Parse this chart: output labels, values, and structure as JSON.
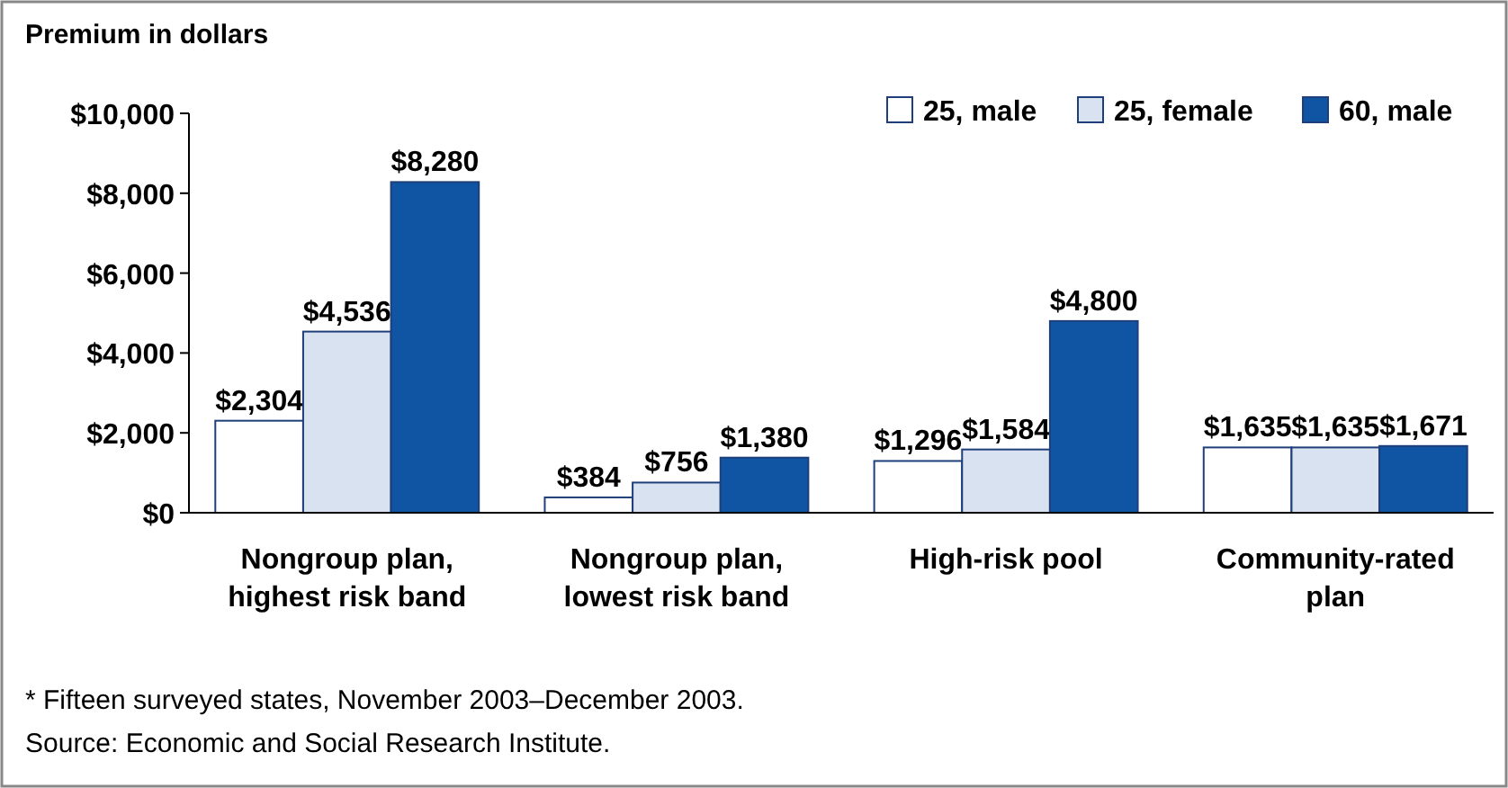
{
  "chart_data": {
    "type": "bar",
    "title": "Premium in dollars",
    "categories": [
      "Nongroup plan, highest risk band",
      "Nongroup plan, lowest risk band",
      "High-risk pool",
      "Community-rated plan"
    ],
    "series": [
      {
        "name": "25, male",
        "color": "#ffffff",
        "values": [
          2304,
          384,
          1296,
          1635
        ],
        "value_labels": [
          "$2,304",
          "$384",
          "$1,296",
          "$1,635"
        ]
      },
      {
        "name": "25, female",
        "color": "#d9e2f0",
        "values": [
          4536,
          756,
          1584,
          1635
        ],
        "value_labels": [
          "$4,536",
          "$756",
          "$1,584",
          "$1,635"
        ]
      },
      {
        "name": "60, male",
        "color": "#0f55a3",
        "values": [
          8280,
          1380,
          4800,
          1671
        ],
        "value_labels": [
          "$8,280",
          "$1,380",
          "$4,800",
          "$1,671"
        ]
      }
    ],
    "ylim": [
      0,
      10000
    ],
    "yticks": [
      {
        "value": 0,
        "label": "$0"
      },
      {
        "value": 2000,
        "label": "$2,000"
      },
      {
        "value": 4000,
        "label": "$4,000"
      },
      {
        "value": 6000,
        "label": "$6,000"
      },
      {
        "value": 8000,
        "label": "$8,000"
      },
      {
        "value": 10000,
        "label": "$10,000"
      }
    ],
    "grid": false,
    "legend": "top right",
    "annotations": [
      "* Fifteen surveyed states, November 2003–December 2003.",
      "Source: Economic and Social Research Institute."
    ]
  }
}
